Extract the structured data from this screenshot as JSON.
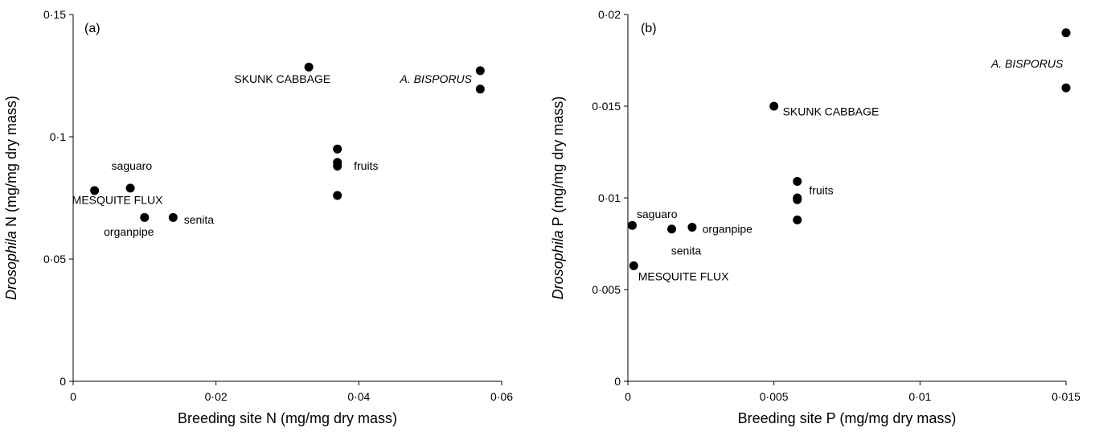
{
  "chart_data": [
    {
      "type": "scatter",
      "panel_label": "(a)",
      "xlabel": "Breeding site N (mg/mg dry mass)",
      "ylabel_italic": "Drosophila",
      "ylabel_rest": " N (mg/mg dry mass)",
      "xlim": [
        0,
        0.06
      ],
      "ylim": [
        0,
        0.15
      ],
      "x_ticks": [
        0,
        0.02,
        0.04,
        0.06
      ],
      "x_tick_labels": [
        "0",
        "0·02",
        "0·04",
        "0·06"
      ],
      "y_ticks": [
        0,
        0.05,
        0.1,
        0.15
      ],
      "y_tick_labels": [
        "0",
        "0·05",
        "0·1",
        "0·15"
      ],
      "grid": false,
      "points": [
        {
          "x": 0.003,
          "y": 0.078
        },
        {
          "x": 0.008,
          "y": 0.079
        },
        {
          "x": 0.01,
          "y": 0.067
        },
        {
          "x": 0.014,
          "y": 0.067
        },
        {
          "x": 0.033,
          "y": 0.1285
        },
        {
          "x": 0.037,
          "y": 0.095
        },
        {
          "x": 0.037,
          "y": 0.0895
        },
        {
          "x": 0.037,
          "y": 0.088
        },
        {
          "x": 0.037,
          "y": 0.076
        },
        {
          "x": 0.057,
          "y": 0.127
        },
        {
          "x": 0.057,
          "y": 0.1195
        }
      ],
      "annotations": [
        {
          "text": "SKUNK CABBAGE",
          "italic": false,
          "x": 0.0293,
          "y": 0.122,
          "anchor": "middle"
        },
        {
          "text": "A. BISPORUS",
          "italic": true,
          "x": 0.0508,
          "y": 0.122,
          "anchor": "middle"
        },
        {
          "text": "fruits",
          "italic": false,
          "x": 0.0393,
          "y": 0.0865,
          "anchor": "start"
        },
        {
          "text": "saguaro",
          "italic": false,
          "x": 0.0082,
          "y": 0.0865,
          "anchor": "middle"
        },
        {
          "text": "MESQUITE FLUX",
          "italic": false,
          "x": 0.0062,
          "y": 0.0725,
          "anchor": "middle"
        },
        {
          "text": "organpipe",
          "italic": false,
          "x": 0.0078,
          "y": 0.0595,
          "anchor": "middle"
        },
        {
          "text": "senita",
          "italic": false,
          "x": 0.0155,
          "y": 0.0645,
          "anchor": "start"
        }
      ]
    },
    {
      "type": "scatter",
      "panel_label": "(b)",
      "xlabel": "Breeding site P (mg/mg dry mass)",
      "ylabel_italic": "Drosophila",
      "ylabel_rest": " P (mg/mg dry mass)",
      "xlim": [
        0,
        0.015
      ],
      "ylim": [
        0,
        0.02
      ],
      "x_ticks": [
        0,
        0.005,
        0.01,
        0.015
      ],
      "x_tick_labels": [
        "0",
        "0·005",
        "0·01",
        "0·015"
      ],
      "y_ticks": [
        0,
        0.005,
        0.01,
        0.015,
        0.02
      ],
      "y_tick_labels": [
        "0",
        "0·005",
        "0·01",
        "0·015",
        "0·02"
      ],
      "grid": false,
      "points": [
        {
          "x": 0.00015,
          "y": 0.0085
        },
        {
          "x": 0.0002,
          "y": 0.0063
        },
        {
          "x": 0.0015,
          "y": 0.0083
        },
        {
          "x": 0.0022,
          "y": 0.0084
        },
        {
          "x": 0.005,
          "y": 0.015
        },
        {
          "x": 0.0058,
          "y": 0.0109
        },
        {
          "x": 0.0058,
          "y": 0.01
        },
        {
          "x": 0.0058,
          "y": 0.0099
        },
        {
          "x": 0.0058,
          "y": 0.0088
        },
        {
          "x": 0.015,
          "y": 0.019
        },
        {
          "x": 0.015,
          "y": 0.016
        }
      ],
      "annotations": [
        {
          "text": "SKUNK CABBAGE",
          "italic": false,
          "x": 0.0053,
          "y": 0.0145,
          "anchor": "start"
        },
        {
          "text": "A. BISPORUS",
          "italic": true,
          "x": 0.0149,
          "y": 0.0171,
          "anchor": "end"
        },
        {
          "text": "fruits",
          "italic": false,
          "x": 0.0062,
          "y": 0.0102,
          "anchor": "start"
        },
        {
          "text": "saguaro",
          "italic": false,
          "x": 0.0003,
          "y": 0.0089,
          "anchor": "start"
        },
        {
          "text": "organpipe",
          "italic": false,
          "x": 0.00255,
          "y": 0.0081,
          "anchor": "start"
        },
        {
          "text": "senita",
          "italic": false,
          "x": 0.00148,
          "y": 0.0069,
          "anchor": "start"
        },
        {
          "text": "MESQUITE FLUX",
          "italic": false,
          "x": 0.00035,
          "y": 0.0055,
          "anchor": "start"
        }
      ]
    }
  ]
}
